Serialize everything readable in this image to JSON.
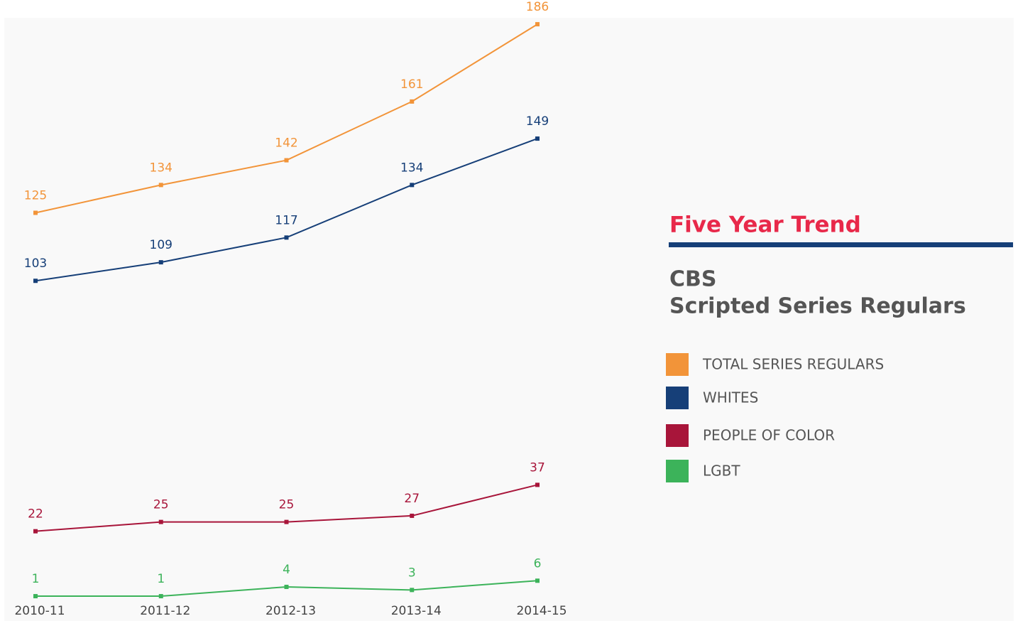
{
  "chart_data": {
    "type": "line",
    "title": "Five Year Trend",
    "subtitle": [
      "CBS",
      "Scripted Series Regulars"
    ],
    "categories": [
      "2010-11",
      "2011-12",
      "2012-13",
      "2013-14",
      "2014-15"
    ],
    "series": [
      {
        "name": "TOTAL SERIES REGULARS",
        "color": "#f29439",
        "values": [
          125,
          134,
          142,
          161,
          186
        ]
      },
      {
        "name": "WHITES",
        "color": "#163f78",
        "values": [
          103,
          109,
          117,
          134,
          149
        ]
      },
      {
        "name": "PEOPLE OF COLOR",
        "color": "#a8153a",
        "values": [
          22,
          25,
          25,
          27,
          37
        ]
      },
      {
        "name": "LGBT",
        "color": "#3cb35a",
        "values": [
          1,
          1,
          4,
          3,
          6
        ]
      }
    ],
    "ylim": [
      0,
      190
    ],
    "grid": false
  }
}
